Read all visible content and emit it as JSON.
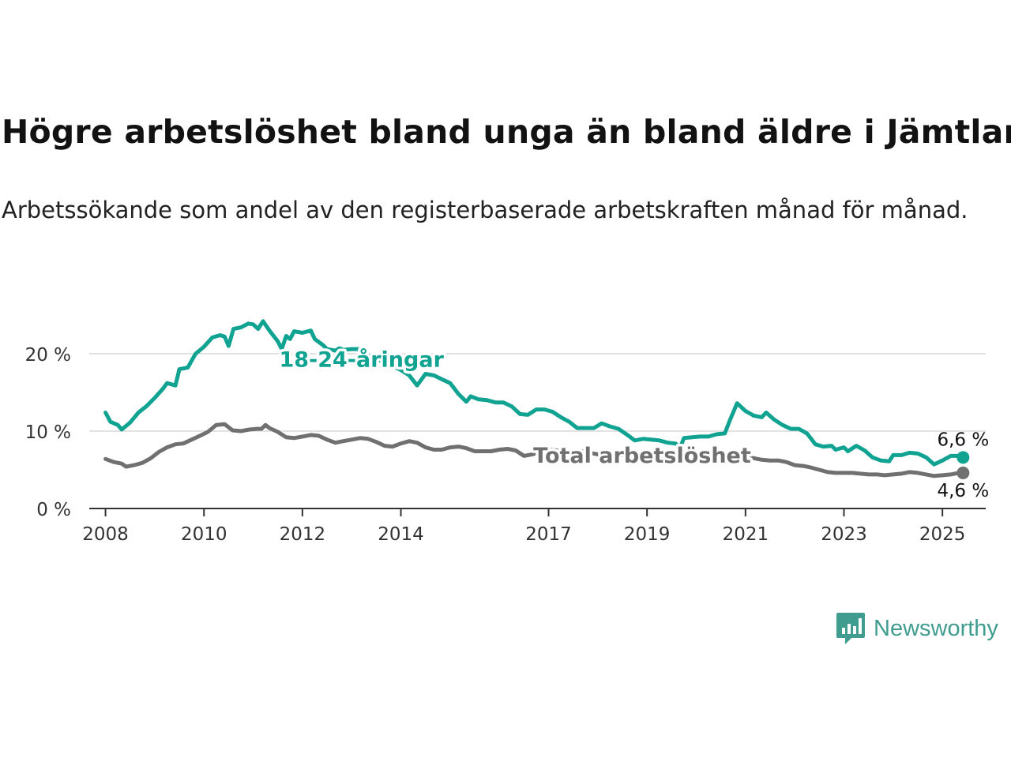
{
  "title": "Högre arbetslöshet bland unga än bland äldre i Jämtland",
  "subtitle": "Arbetssökande som andel av den registerbaserade arbetskraften månad för månad.",
  "brand": {
    "name": "Newsworthy",
    "icon": "chart-logo-icon"
  },
  "colors": {
    "youth": "#11a392",
    "total": "#707070",
    "grid": "#d9d9d9",
    "axis": "#333333",
    "brand": "#3f9c8f"
  },
  "chart_data": {
    "type": "line",
    "ylim": [
      0,
      25
    ],
    "yticks": [
      0,
      10,
      20
    ],
    "ytick_labels": [
      "0 %",
      "10 %",
      "20 %"
    ],
    "xlim": [
      2007.67,
      2025.88
    ],
    "xticks": [
      2008,
      2010,
      2012,
      2014,
      2017,
      2019,
      2021,
      2023,
      2025
    ],
    "xtick_labels": [
      "2008",
      "2010",
      "2012",
      "2014",
      "2017",
      "2019",
      "2021",
      "2023",
      "2025"
    ],
    "grid": true,
    "end_labels": {
      "youth": "6,6 %",
      "total": "4,6 %"
    },
    "series": [
      {
        "name": "18-24-åringar",
        "color": "#11a392",
        "points": [
          [
            2008.0,
            12.4
          ],
          [
            2008.1,
            11.2
          ],
          [
            2008.25,
            10.8
          ],
          [
            2008.33,
            10.2
          ],
          [
            2008.5,
            11.1
          ],
          [
            2008.67,
            12.4
          ],
          [
            2008.83,
            13.2
          ],
          [
            2009.0,
            14.3
          ],
          [
            2009.17,
            15.5
          ],
          [
            2009.25,
            16.2
          ],
          [
            2009.42,
            15.9
          ],
          [
            2009.5,
            18.0
          ],
          [
            2009.67,
            18.2
          ],
          [
            2009.83,
            20.0
          ],
          [
            2010.0,
            20.9
          ],
          [
            2010.17,
            22.1
          ],
          [
            2010.33,
            22.4
          ],
          [
            2010.42,
            22.2
          ],
          [
            2010.5,
            21.0
          ],
          [
            2010.6,
            23.2
          ],
          [
            2010.75,
            23.4
          ],
          [
            2010.9,
            23.9
          ],
          [
            2011.0,
            23.8
          ],
          [
            2011.1,
            23.2
          ],
          [
            2011.2,
            24.2
          ],
          [
            2011.33,
            23.0
          ],
          [
            2011.5,
            21.6
          ],
          [
            2011.58,
            20.6
          ],
          [
            2011.67,
            22.3
          ],
          [
            2011.75,
            21.9
          ],
          [
            2011.83,
            22.9
          ],
          [
            2012.0,
            22.7
          ],
          [
            2012.17,
            23.0
          ],
          [
            2012.25,
            21.9
          ],
          [
            2012.42,
            21.1
          ],
          [
            2012.5,
            20.6
          ],
          [
            2012.67,
            20.4
          ],
          [
            2012.75,
            20.7
          ],
          [
            2012.83,
            20.5
          ],
          [
            2013.0,
            20.6
          ],
          [
            2013.17,
            20.6
          ],
          [
            2013.33,
            19.8
          ],
          [
            2013.5,
            19.4
          ],
          [
            2013.67,
            18.8
          ],
          [
            2013.83,
            18.4
          ],
          [
            2014.0,
            17.9
          ],
          [
            2014.17,
            17.2
          ],
          [
            2014.33,
            15.9
          ],
          [
            2014.5,
            17.4
          ],
          [
            2014.67,
            17.2
          ],
          [
            2014.83,
            16.7
          ],
          [
            2015.0,
            16.2
          ],
          [
            2015.17,
            14.8
          ],
          [
            2015.33,
            13.8
          ],
          [
            2015.42,
            14.5
          ],
          [
            2015.58,
            14.1
          ],
          [
            2015.75,
            14.0
          ],
          [
            2015.92,
            13.7
          ],
          [
            2016.08,
            13.7
          ],
          [
            2016.25,
            13.2
          ],
          [
            2016.42,
            12.2
          ],
          [
            2016.58,
            12.1
          ],
          [
            2016.75,
            12.8
          ],
          [
            2016.92,
            12.8
          ],
          [
            2017.08,
            12.5
          ],
          [
            2017.25,
            11.8
          ],
          [
            2017.42,
            11.2
          ],
          [
            2017.58,
            10.4
          ],
          [
            2017.75,
            10.4
          ],
          [
            2017.92,
            10.4
          ],
          [
            2018.08,
            11.0
          ],
          [
            2018.25,
            10.6
          ],
          [
            2018.42,
            10.3
          ],
          [
            2018.58,
            9.6
          ],
          [
            2018.75,
            8.8
          ],
          [
            2018.92,
            9.0
          ],
          [
            2019.08,
            8.9
          ],
          [
            2019.25,
            8.8
          ],
          [
            2019.42,
            8.5
          ],
          [
            2019.58,
            8.4
          ],
          [
            2019.67,
            7.8
          ],
          [
            2019.75,
            9.1
          ],
          [
            2019.92,
            9.2
          ],
          [
            2020.08,
            9.3
          ],
          [
            2020.25,
            9.3
          ],
          [
            2020.42,
            9.6
          ],
          [
            2020.58,
            9.7
          ],
          [
            2020.67,
            11.2
          ],
          [
            2020.83,
            13.6
          ],
          [
            2021.0,
            12.6
          ],
          [
            2021.17,
            12.0
          ],
          [
            2021.33,
            11.8
          ],
          [
            2021.42,
            12.4
          ],
          [
            2021.58,
            11.5
          ],
          [
            2021.75,
            10.8
          ],
          [
            2021.92,
            10.3
          ],
          [
            2022.08,
            10.3
          ],
          [
            2022.25,
            9.7
          ],
          [
            2022.42,
            8.3
          ],
          [
            2022.58,
            8.0
          ],
          [
            2022.75,
            8.1
          ],
          [
            2022.83,
            7.6
          ],
          [
            2023.0,
            7.9
          ],
          [
            2023.08,
            7.4
          ],
          [
            2023.25,
            8.1
          ],
          [
            2023.42,
            7.5
          ],
          [
            2023.58,
            6.6
          ],
          [
            2023.75,
            6.2
          ],
          [
            2023.92,
            6.1
          ],
          [
            2024.0,
            6.9
          ],
          [
            2024.17,
            6.9
          ],
          [
            2024.33,
            7.2
          ],
          [
            2024.5,
            7.1
          ],
          [
            2024.67,
            6.6
          ],
          [
            2024.83,
            5.7
          ],
          [
            2025.0,
            6.2
          ],
          [
            2025.17,
            6.8
          ],
          [
            2025.33,
            6.8
          ],
          [
            2025.42,
            6.6
          ]
        ]
      },
      {
        "name": "Total arbetslöshet",
        "color": "#707070",
        "points": [
          [
            2008.0,
            6.4
          ],
          [
            2008.17,
            6.0
          ],
          [
            2008.33,
            5.8
          ],
          [
            2008.42,
            5.4
          ],
          [
            2008.58,
            5.6
          ],
          [
            2008.75,
            5.9
          ],
          [
            2008.92,
            6.5
          ],
          [
            2009.08,
            7.3
          ],
          [
            2009.25,
            7.9
          ],
          [
            2009.42,
            8.3
          ],
          [
            2009.58,
            8.4
          ],
          [
            2009.75,
            8.9
          ],
          [
            2009.92,
            9.4
          ],
          [
            2010.08,
            9.9
          ],
          [
            2010.25,
            10.8
          ],
          [
            2010.42,
            10.9
          ],
          [
            2010.58,
            10.1
          ],
          [
            2010.75,
            10.0
          ],
          [
            2010.92,
            10.2
          ],
          [
            2011.08,
            10.3
          ],
          [
            2011.17,
            10.3
          ],
          [
            2011.25,
            10.8
          ],
          [
            2011.33,
            10.4
          ],
          [
            2011.5,
            9.9
          ],
          [
            2011.67,
            9.2
          ],
          [
            2011.83,
            9.1
          ],
          [
            2012.0,
            9.3
          ],
          [
            2012.17,
            9.5
          ],
          [
            2012.33,
            9.4
          ],
          [
            2012.5,
            8.9
          ],
          [
            2012.67,
            8.5
          ],
          [
            2012.83,
            8.7
          ],
          [
            2013.0,
            8.9
          ],
          [
            2013.17,
            9.1
          ],
          [
            2013.33,
            9.0
          ],
          [
            2013.5,
            8.6
          ],
          [
            2013.67,
            8.1
          ],
          [
            2013.83,
            8.0
          ],
          [
            2014.0,
            8.4
          ],
          [
            2014.17,
            8.7
          ],
          [
            2014.33,
            8.5
          ],
          [
            2014.5,
            7.9
          ],
          [
            2014.67,
            7.6
          ],
          [
            2014.83,
            7.6
          ],
          [
            2015.0,
            7.9
          ],
          [
            2015.17,
            8.0
          ],
          [
            2015.33,
            7.8
          ],
          [
            2015.5,
            7.4
          ],
          [
            2015.67,
            7.4
          ],
          [
            2015.83,
            7.4
          ],
          [
            2016.0,
            7.6
          ],
          [
            2016.17,
            7.7
          ],
          [
            2016.33,
            7.5
          ],
          [
            2016.5,
            6.8
          ],
          [
            2016.67,
            7.0
          ],
          [
            2016.83,
            7.3
          ],
          [
            2017.0,
            7.6
          ],
          [
            2017.17,
            7.5
          ],
          [
            2017.33,
            7.3
          ],
          [
            2017.5,
            7.2
          ],
          [
            2017.67,
            7.4
          ],
          [
            2017.83,
            7.2
          ],
          [
            2018.0,
            7.0
          ],
          [
            2018.17,
            7.2
          ],
          [
            2018.33,
            7.1
          ],
          [
            2018.5,
            6.9
          ],
          [
            2018.67,
            6.8
          ],
          [
            2018.83,
            6.7
          ],
          [
            2019.0,
            6.8
          ],
          [
            2019.17,
            6.8
          ],
          [
            2019.33,
            6.6
          ],
          [
            2019.5,
            6.5
          ],
          [
            2019.67,
            6.4
          ],
          [
            2019.83,
            6.5
          ],
          [
            2020.0,
            6.5
          ],
          [
            2020.17,
            6.6
          ],
          [
            2020.33,
            6.8
          ],
          [
            2020.5,
            6.9
          ],
          [
            2020.67,
            6.8
          ],
          [
            2020.83,
            6.8
          ],
          [
            2021.0,
            6.7
          ],
          [
            2021.17,
            6.5
          ],
          [
            2021.33,
            6.3
          ],
          [
            2021.5,
            6.2
          ],
          [
            2021.67,
            6.2
          ],
          [
            2021.83,
            6.0
          ],
          [
            2022.0,
            5.6
          ],
          [
            2022.17,
            5.5
          ],
          [
            2022.33,
            5.3
          ],
          [
            2022.5,
            5.0
          ],
          [
            2022.67,
            4.7
          ],
          [
            2022.83,
            4.6
          ],
          [
            2023.0,
            4.6
          ],
          [
            2023.17,
            4.6
          ],
          [
            2023.33,
            4.5
          ],
          [
            2023.5,
            4.4
          ],
          [
            2023.67,
            4.4
          ],
          [
            2023.83,
            4.3
          ],
          [
            2024.0,
            4.4
          ],
          [
            2024.17,
            4.5
          ],
          [
            2024.33,
            4.7
          ],
          [
            2024.5,
            4.6
          ],
          [
            2024.67,
            4.4
          ],
          [
            2024.83,
            4.2
          ],
          [
            2025.0,
            4.3
          ],
          [
            2025.17,
            4.4
          ],
          [
            2025.33,
            4.6
          ],
          [
            2025.42,
            4.6
          ]
        ]
      }
    ]
  }
}
